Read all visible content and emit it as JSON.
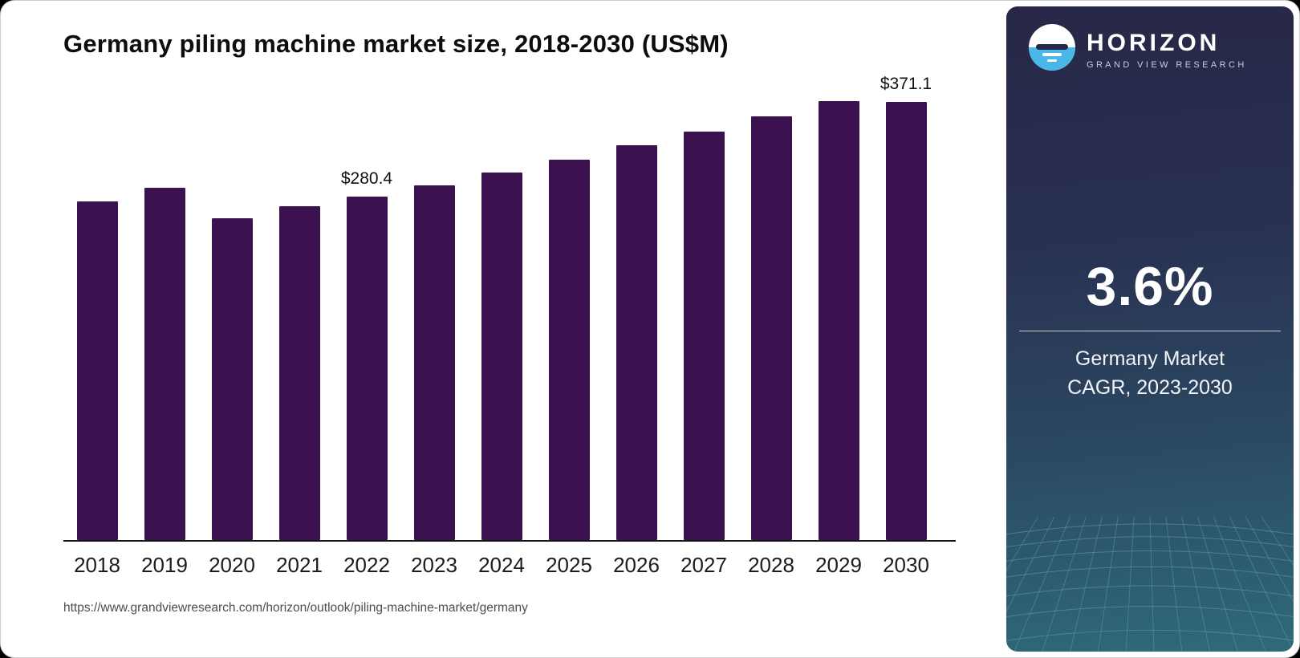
{
  "chart": {
    "title": "Germany piling machine market size, 2018-2030 (US$M)"
  },
  "chart_data": {
    "type": "bar",
    "title": "Germany piling machine market size, 2018-2030 (US$M)",
    "categories": [
      "2018",
      "2019",
      "2020",
      "2021",
      "2022",
      "2023",
      "2024",
      "2025",
      "2026",
      "2027",
      "2028",
      "2029",
      "2030"
    ],
    "values": [
      276.2,
      287.5,
      262.9,
      272.8,
      280.4,
      289.8,
      300.1,
      310.9,
      322.1,
      333.7,
      345.7,
      358.2,
      371.1
    ],
    "data_labels": {
      "2022": "$280.4",
      "2030": "$371.1"
    },
    "xlabel": "",
    "ylabel": "",
    "ylim": [
      0,
      380
    ],
    "grid": false,
    "legend": false,
    "bar_color": "#3b1150"
  },
  "source_url": "https://www.grandviewresearch.com/horizon/outlook/piling-machine-market/germany",
  "panel": {
    "brand": "HORIZON",
    "brand_sub": "GRAND VIEW RESEARCH",
    "cagr_value": "3.6%",
    "caption_line1": "Germany Market",
    "caption_line2": "CAGR, 2023-2030",
    "colors": {
      "logo_blue": "#49b8e8",
      "panel_top": "#282747",
      "panel_bottom": "#2f6a79",
      "mesh_line": "#5fa3b4"
    }
  }
}
